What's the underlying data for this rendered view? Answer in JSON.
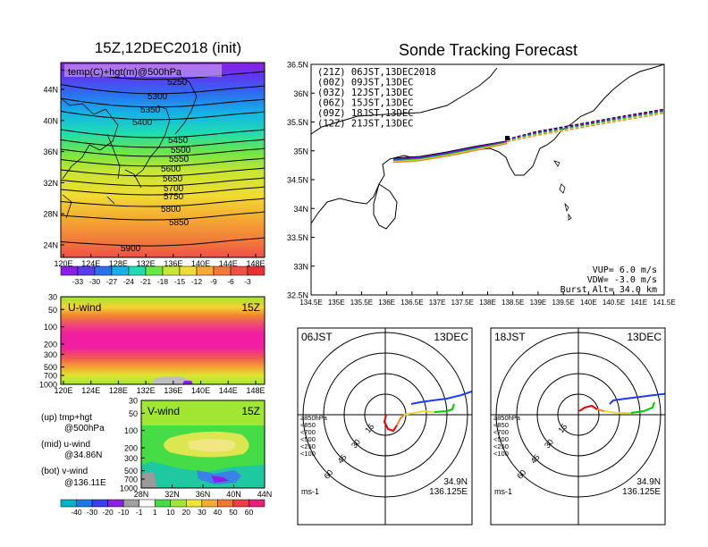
{
  "titles": {
    "left": "15Z,12DEC2018 (init)",
    "right": "Sonde Tracking Forecast"
  },
  "panel_500": {
    "label": "temp(C)+hgt(m)@500hPa",
    "yticks": [
      "44N",
      "40N",
      "36N",
      "32N",
      "28N",
      "24N"
    ],
    "xticks": [
      "120E",
      "124E",
      "128E",
      "132E",
      "136E",
      "140E",
      "144E",
      "148E"
    ],
    "contours": [
      "5250",
      "5300",
      "5350",
      "5400",
      "5450",
      "5500",
      "5550",
      "5600",
      "5650",
      "5700",
      "5750",
      "5800",
      "5850",
      "5900"
    ],
    "colorbar": [
      "-33",
      "-30",
      "-27",
      "-24",
      "-21",
      "-18",
      "-15",
      "-12",
      "-9",
      "-6",
      "-3"
    ]
  },
  "panel_u": {
    "label": "U-wind",
    "time": "15Z",
    "yticks": [
      "30",
      "50",
      "100",
      "200",
      "300",
      "500",
      "700",
      "1000"
    ],
    "xticks": [
      "120E",
      "124E",
      "128E",
      "132E",
      "136E",
      "140E",
      "144E",
      "148E"
    ]
  },
  "panel_v": {
    "label": "V-wind",
    "time": "15Z",
    "yticks": [
      "30",
      "50",
      "100",
      "200",
      "300",
      "500",
      "700",
      "1000"
    ],
    "xticks": [
      "28N",
      "32N",
      "36N",
      "40N",
      "44N"
    ],
    "colorbar": [
      "-40",
      "-30",
      "-20",
      "-10",
      "-1",
      "1",
      "10",
      "20",
      "30",
      "40",
      "50",
      "60"
    ]
  },
  "legend_left": {
    "l1": "(up) tmp+hgt",
    "l2": "@500hPa",
    "l3": "(mid) u-wind",
    "l4": "@34.86N",
    "l5": "(bot) v-wind",
    "l6": "@136.11E"
  },
  "track": {
    "runs": [
      {
        "label": "(21Z) 06JST,13DEC2018",
        "color": "#000000"
      },
      {
        "label": "(00Z) 09JST,13DEC",
        "color": "#a000c8"
      },
      {
        "label": "(03Z) 12JST,13DEC",
        "color": "#1e3cff"
      },
      {
        "label": "(06Z) 15JST,13DEC",
        "color": "#00c800"
      },
      {
        "label": "(09Z) 18JST,13DEC",
        "color": "#e6dc32"
      },
      {
        "label": "(12Z) 21JST,13DEC",
        "color": "#f08228"
      }
    ],
    "yticks": [
      "36.5N",
      "36N",
      "35.5N",
      "35N",
      "34.5N",
      "34N",
      "33.5N",
      "33N",
      "32.5N"
    ],
    "xticks": [
      "134.5E",
      "135E",
      "135.5E",
      "136E",
      "136.5E",
      "137E",
      "137.5E",
      "138E",
      "138.5E",
      "139E",
      "139.5E",
      "140E",
      "140.5E",
      "141E",
      "141.5E"
    ],
    "vup": "VUP= 6.0 m/s",
    "vdw": "VDW= -3.0 m/s",
    "burst": "Burst Alt= 34.0 km"
  },
  "hodo_left": {
    "time": "06JST",
    "date": "13DEC",
    "rings": [
      "15",
      "30",
      "45",
      "60"
    ],
    "levels": [
      "≥850hPa",
      "<850",
      "<700",
      "<500",
      "<250",
      "<100"
    ],
    "level_colors": [
      "#e60000",
      "#f08228",
      "#e6dc32",
      "#00c800",
      "#00b4c8",
      "#1e3cff"
    ],
    "unit": "ms-1",
    "lat": "34.9N",
    "lon": "136.125E"
  },
  "hodo_right": {
    "time": "18JST",
    "date": "13DEC",
    "rings": [
      "15",
      "30",
      "45",
      "60"
    ],
    "levels": [
      "≥850hPa",
      "<850",
      "<700",
      "<500",
      "<250",
      "<100"
    ],
    "level_colors": [
      "#e60000",
      "#f08228",
      "#e6dc32",
      "#00c800",
      "#00b4c8",
      "#1e3cff"
    ],
    "unit": "ms-1",
    "lat": "34.9N",
    "lon": "136.125E"
  }
}
